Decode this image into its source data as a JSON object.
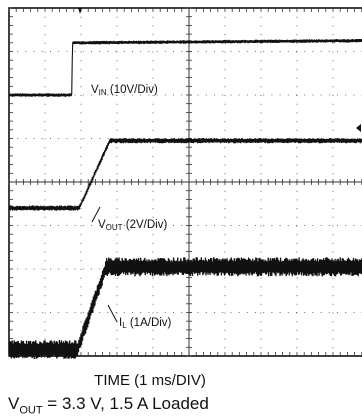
{
  "chart_data": {
    "type": "line",
    "xlabel": "TIME (1 ms/DIV)",
    "x_divisions": 10,
    "y_divisions": 8,
    "x_range_ms": [
      0,
      10
    ],
    "series": [
      {
        "name": "VIN",
        "label_main": "V",
        "label_sub": "IN",
        "label_rest": " (10V/Div)",
        "scale_per_div": "10V/Div",
        "points_ms_div": [
          [
            0,
            6.0
          ],
          [
            1.75,
            6.0
          ],
          [
            1.76,
            7.2
          ],
          [
            10,
            7.25
          ]
        ],
        "noise_div": 0.04,
        "color": "#111111"
      },
      {
        "name": "VOUT",
        "label_main": "V",
        "label_sub": "OUT",
        "label_rest": " (2V/Div)",
        "scale_per_div": "2V/Div",
        "points_ms_div": [
          [
            0,
            3.4
          ],
          [
            1.95,
            3.4
          ],
          [
            2.8,
            4.95
          ],
          [
            10,
            4.95
          ]
        ],
        "noise_div": 0.06,
        "color": "#111111"
      },
      {
        "name": "IL",
        "label_main": "I",
        "label_sub": "L",
        "label_rest": " (1A/Div)",
        "scale_per_div": "1A/Div",
        "points_ms_div": [
          [
            0,
            0.15
          ],
          [
            1.9,
            0.15
          ],
          [
            2.7,
            2.05
          ],
          [
            10,
            2.05
          ]
        ],
        "noise_div": 0.22,
        "color": "#111111"
      }
    ]
  },
  "caption": {
    "main": "V",
    "sub": "OUT",
    "rest": " = 3.3 V, 1.5 A Loaded"
  }
}
